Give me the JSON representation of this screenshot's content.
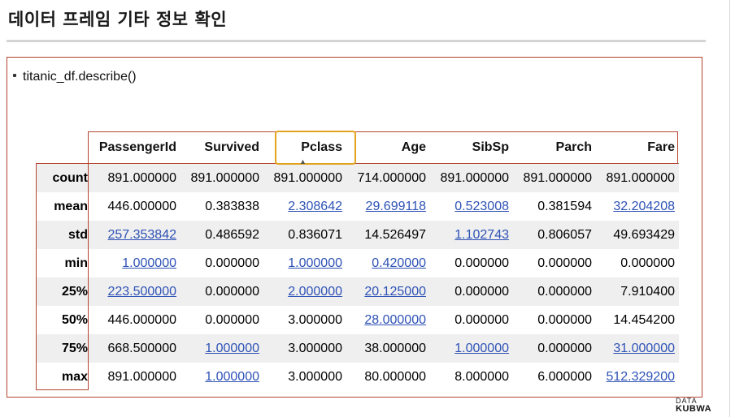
{
  "header": {
    "title": "데이터 프레임 기타 정보 확인"
  },
  "code": {
    "text": "titanic_df.describe()"
  },
  "table": {
    "columns": [
      "PassengerId",
      "Survived",
      "Pclass",
      "Age",
      "SibSp",
      "Parch",
      "Fare"
    ],
    "highlighted_column": "Pclass",
    "rows": [
      {
        "index": "count",
        "cells": [
          {
            "v": "891.000000",
            "link": false
          },
          {
            "v": "891.000000",
            "link": false
          },
          {
            "v": "891.000000",
            "link": false
          },
          {
            "v": "714.000000",
            "link": false
          },
          {
            "v": "891.000000",
            "link": false
          },
          {
            "v": "891.000000",
            "link": false
          },
          {
            "v": "891.000000",
            "link": false
          }
        ]
      },
      {
        "index": "mean",
        "cells": [
          {
            "v": "446.000000",
            "link": false
          },
          {
            "v": "0.383838",
            "link": false
          },
          {
            "v": "2.308642",
            "link": true
          },
          {
            "v": "29.699118",
            "link": true
          },
          {
            "v": "0.523008",
            "link": true
          },
          {
            "v": "0.381594",
            "link": false
          },
          {
            "v": "32.204208",
            "link": true
          }
        ]
      },
      {
        "index": "std",
        "cells": [
          {
            "v": "257.353842",
            "link": true
          },
          {
            "v": "0.486592",
            "link": false
          },
          {
            "v": "0.836071",
            "link": false
          },
          {
            "v": "14.526497",
            "link": false
          },
          {
            "v": "1.102743",
            "link": true
          },
          {
            "v": "0.806057",
            "link": false
          },
          {
            "v": "49.693429",
            "link": false
          }
        ]
      },
      {
        "index": "min",
        "cells": [
          {
            "v": "1.000000",
            "link": true
          },
          {
            "v": "0.000000",
            "link": false
          },
          {
            "v": "1.000000",
            "link": true
          },
          {
            "v": "0.420000",
            "link": true
          },
          {
            "v": "0.000000",
            "link": false
          },
          {
            "v": "0.000000",
            "link": false
          },
          {
            "v": "0.000000",
            "link": false
          }
        ]
      },
      {
        "index": "25%",
        "cells": [
          {
            "v": "223.500000",
            "link": true
          },
          {
            "v": "0.000000",
            "link": false
          },
          {
            "v": "2.000000",
            "link": true
          },
          {
            "v": "20.125000",
            "link": true
          },
          {
            "v": "0.000000",
            "link": false
          },
          {
            "v": "0.000000",
            "link": false
          },
          {
            "v": "7.910400",
            "link": false
          }
        ]
      },
      {
        "index": "50%",
        "cells": [
          {
            "v": "446.000000",
            "link": false
          },
          {
            "v": "0.000000",
            "link": false
          },
          {
            "v": "3.000000",
            "link": false
          },
          {
            "v": "28.000000",
            "link": true
          },
          {
            "v": "0.000000",
            "link": false
          },
          {
            "v": "0.000000",
            "link": false
          },
          {
            "v": "14.454200",
            "link": false
          }
        ]
      },
      {
        "index": "75%",
        "cells": [
          {
            "v": "668.500000",
            "link": false
          },
          {
            "v": "1.000000",
            "link": true
          },
          {
            "v": "3.000000",
            "link": false
          },
          {
            "v": "38.000000",
            "link": false
          },
          {
            "v": "1.000000",
            "link": true
          },
          {
            "v": "0.000000",
            "link": false
          },
          {
            "v": "31.000000",
            "link": true
          }
        ]
      },
      {
        "index": "max",
        "cells": [
          {
            "v": "891.000000",
            "link": false
          },
          {
            "v": "1.000000",
            "link": true
          },
          {
            "v": "3.000000",
            "link": false
          },
          {
            "v": "80.000000",
            "link": false
          },
          {
            "v": "8.000000",
            "link": false
          },
          {
            "v": "6.000000",
            "link": false
          },
          {
            "v": "512.329200",
            "link": true
          }
        ]
      }
    ]
  },
  "logo": {
    "top": "DATA",
    "bottom": "KUBWA"
  },
  "colors": {
    "annotation_box": "#b4442e",
    "highlight_box": "#e3a31e",
    "link": "#2e52b6",
    "stripe": "#efefef"
  },
  "icons": {
    "cursor": "mouse-pointer-icon",
    "bullet": "bullet-icon"
  }
}
